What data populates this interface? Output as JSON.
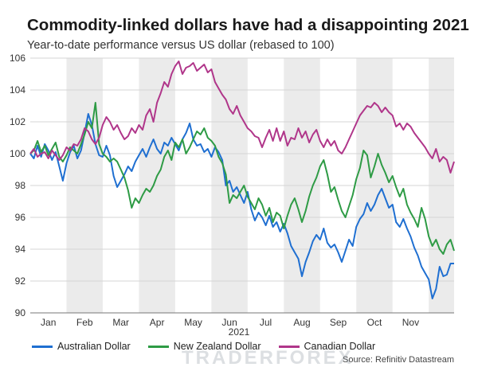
{
  "header": {
    "title": "Commodity-linked dollars have had a disappointing 2021",
    "subtitle": "Year-to-date performance versus US dollar (rebased to 100)"
  },
  "source": "Source: Refinitiv Datastream",
  "watermark": "TRADERFOREX",
  "colors": {
    "australian": "#1f6fd1",
    "new_zealand": "#2e9b45",
    "canadian": "#b0368a",
    "shade": "#ebebeb",
    "grid": "#d4d4d4"
  },
  "chart_data": {
    "type": "line",
    "title": "Commodity-linked dollars have had a disappointing 2021",
    "subtitle": "Year-to-date performance versus US dollar (rebased to 100)",
    "xlabel": "2021",
    "ylabel": "",
    "ylim": [
      90,
      106
    ],
    "yticks": [
      90,
      92,
      94,
      96,
      98,
      100,
      102,
      104,
      106
    ],
    "month_labels": [
      "Jan",
      "Feb",
      "Mar",
      "Apr",
      "May",
      "Jun",
      "Jul",
      "Aug",
      "Sep",
      "Oct",
      "Nov"
    ],
    "xlim": [
      0,
      11.7
    ],
    "shaded_month_bands": true,
    "grid": "horizontal",
    "legend_placement": "bottom",
    "x": [
      0,
      0.1,
      0.2,
      0.3,
      0.4,
      0.5,
      0.6,
      0.7,
      0.8,
      0.9,
      1.0,
      1.1,
      1.2,
      1.3,
      1.4,
      1.5,
      1.6,
      1.7,
      1.8,
      1.9,
      2.0,
      2.1,
      2.2,
      2.3,
      2.4,
      2.5,
      2.6,
      2.7,
      2.8,
      2.9,
      3.0,
      3.1,
      3.2,
      3.3,
      3.4,
      3.5,
      3.6,
      3.7,
      3.8,
      3.9,
      4.0,
      4.1,
      4.2,
      4.3,
      4.4,
      4.5,
      4.6,
      4.7,
      4.8,
      4.9,
      5.0,
      5.1,
      5.2,
      5.3,
      5.4,
      5.5,
      5.6,
      5.7,
      5.8,
      5.9,
      6.0,
      6.1,
      6.2,
      6.3,
      6.4,
      6.5,
      6.6,
      6.7,
      6.8,
      6.9,
      7.0,
      7.1,
      7.2,
      7.3,
      7.4,
      7.5,
      7.6,
      7.7,
      7.8,
      7.9,
      8.0,
      8.1,
      8.2,
      8.3,
      8.4,
      8.5,
      8.6,
      8.7,
      8.8,
      8.9,
      9.0,
      9.1,
      9.2,
      9.3,
      9.4,
      9.5,
      9.6,
      9.7,
      9.8,
      9.9,
      10.0,
      10.1,
      10.2,
      10.3,
      10.4,
      10.5,
      10.6,
      10.7,
      10.8,
      10.9,
      11.0,
      11.1,
      11.2,
      11.3,
      11.4,
      11.5,
      11.6,
      11.7
    ],
    "series": [
      {
        "name": "Australian Dollar",
        "color": "#1f6fd1",
        "values": [
          100.0,
          99.7,
          100.5,
          99.8,
          100.6,
          100.2,
          99.6,
          100.1,
          99.2,
          98.3,
          99.4,
          100.1,
          100.5,
          99.7,
          100.2,
          101.3,
          102.5,
          101.8,
          100.6,
          99.9,
          99.8,
          100.5,
          99.9,
          98.6,
          97.9,
          98.3,
          98.7,
          99.2,
          98.9,
          99.5,
          99.9,
          100.3,
          99.8,
          100.4,
          100.9,
          100.3,
          100.0,
          100.7,
          100.5,
          101.0,
          100.6,
          100.2,
          100.9,
          101.3,
          101.9,
          100.9,
          100.5,
          100.6,
          100.1,
          100.3,
          99.8,
          100.4,
          100.1,
          99.6,
          98.0,
          98.3,
          97.6,
          97.9,
          97.4,
          96.9,
          97.6,
          96.5,
          95.8,
          96.3,
          96.0,
          95.5,
          96.1,
          95.4,
          95.7,
          95.1,
          95.6,
          95.0,
          94.2,
          93.8,
          93.4,
          92.3,
          93.2,
          93.8,
          94.5,
          94.9,
          94.6,
          95.3,
          94.4,
          94.1,
          94.3,
          93.8,
          93.2,
          93.9,
          94.6,
          94.2,
          95.4,
          95.9,
          96.2,
          96.9,
          96.4,
          96.8,
          97.4,
          97.8,
          97.2,
          96.6,
          96.8,
          95.7,
          95.4,
          95.9,
          95.3,
          94.8,
          94.1,
          93.6,
          92.9,
          92.5,
          92.1,
          90.9,
          91.5,
          92.9,
          92.3,
          92.4,
          93.1,
          93.1
        ]
      },
      {
        "name": "New Zealand Dollar",
        "color": "#2e9b45",
        "values": [
          100.0,
          100.2,
          100.8,
          100.1,
          100.5,
          99.9,
          100.3,
          100.7,
          99.8,
          99.5,
          99.9,
          100.4,
          100.2,
          100.0,
          100.6,
          101.2,
          102.0,
          101.6,
          103.2,
          100.6,
          100.0,
          99.8,
          99.5,
          99.7,
          99.5,
          99.0,
          98.5,
          97.7,
          96.6,
          97.2,
          96.9,
          97.4,
          97.8,
          97.6,
          98.0,
          98.6,
          99.0,
          99.8,
          100.2,
          99.6,
          100.7,
          100.4,
          100.9,
          100.0,
          100.4,
          100.9,
          101.4,
          101.2,
          101.6,
          101.0,
          100.8,
          100.5,
          99.8,
          99.4,
          98.7,
          96.9,
          97.4,
          97.2,
          97.6,
          98.0,
          97.3,
          96.9,
          96.5,
          97.2,
          96.8,
          96.1,
          96.6,
          95.7,
          96.3,
          96.1,
          95.3,
          96.1,
          96.8,
          97.2,
          96.5,
          95.7,
          96.4,
          97.3,
          98.0,
          98.5,
          99.2,
          99.6,
          98.7,
          97.6,
          97.9,
          97.1,
          96.4,
          96.0,
          96.7,
          97.4,
          98.4,
          99.1,
          100.2,
          99.9,
          98.5,
          99.2,
          100.0,
          99.3,
          98.8,
          98.2,
          98.6,
          97.9,
          97.3,
          97.8,
          96.8,
          96.3,
          95.9,
          95.4,
          96.6,
          95.9,
          94.8,
          94.2,
          94.6,
          94.0,
          93.7,
          94.3,
          94.6,
          93.9
        ]
      },
      {
        "name": "Canadian Dollar",
        "color": "#b0368a",
        "values": [
          100.0,
          100.3,
          99.8,
          100.0,
          100.1,
          99.7,
          100.2,
          99.9,
          99.6,
          99.9,
          100.4,
          100.2,
          100.6,
          100.5,
          100.9,
          101.6,
          101.4,
          100.9,
          100.6,
          101.0,
          101.8,
          102.3,
          102.0,
          101.5,
          101.8,
          101.3,
          100.9,
          101.1,
          101.6,
          101.3,
          101.8,
          101.5,
          102.4,
          102.8,
          102.0,
          103.2,
          103.8,
          104.5,
          104.2,
          105.0,
          105.5,
          105.8,
          105.0,
          105.4,
          105.5,
          105.7,
          105.2,
          105.4,
          105.6,
          105.1,
          105.3,
          104.5,
          104.1,
          103.7,
          103.4,
          102.8,
          102.5,
          103.0,
          102.4,
          102.0,
          101.6,
          101.4,
          101.1,
          101.0,
          100.4,
          101.0,
          101.5,
          100.8,
          101.6,
          100.8,
          101.4,
          100.5,
          101.0,
          100.9,
          101.6,
          101.0,
          101.4,
          100.7,
          101.2,
          101.5,
          100.8,
          100.4,
          100.9,
          100.5,
          100.8,
          100.2,
          100.0,
          100.4,
          100.9,
          101.4,
          101.9,
          102.4,
          102.7,
          103.0,
          102.9,
          103.2,
          103.0,
          102.6,
          102.9,
          102.6,
          102.4,
          101.7,
          101.9,
          101.5,
          101.9,
          101.7,
          101.3,
          101.0,
          100.7,
          100.4,
          100.0,
          99.7,
          100.3,
          99.5,
          99.8,
          99.6,
          98.8,
          99.5
        ]
      }
    ]
  }
}
